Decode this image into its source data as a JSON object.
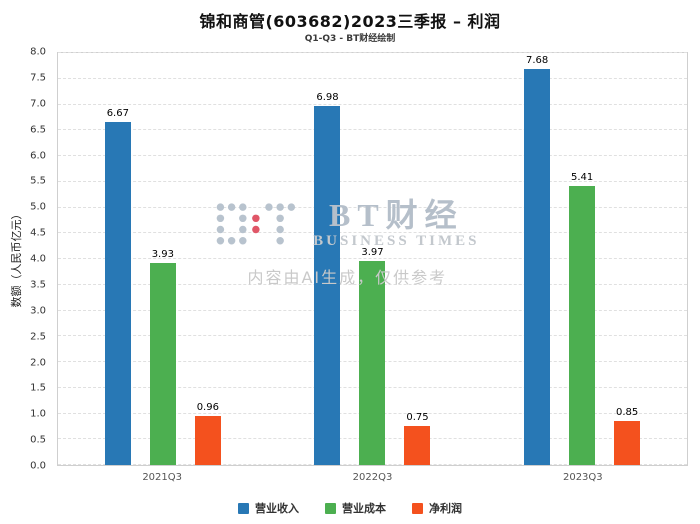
{
  "title": "锦和商管(603682)2023三季报 – 利润",
  "subtitle": "Q1-Q3 - BT财经绘制",
  "watermark": {
    "logo_text": "BT财经",
    "logo_sub": "BUSINESS TIMES",
    "disclaimer": "内容由AI生成，仅供参考"
  },
  "chart_data": {
    "type": "bar",
    "categories": [
      "2021Q3",
      "2022Q3",
      "2023Q3"
    ],
    "series": [
      {
        "name": "营业收入",
        "color": "#2878B5",
        "values": [
          6.67,
          6.98,
          7.68
        ]
      },
      {
        "name": "营业成本",
        "color": "#4CAF50",
        "values": [
          3.93,
          3.97,
          5.41
        ]
      },
      {
        "name": "净利润",
        "color": "#F4511E",
        "values": [
          0.96,
          0.75,
          0.85
        ]
      }
    ],
    "xlabel": "",
    "ylabel": "数额（人民币亿元）",
    "ylim": [
      0,
      8
    ],
    "ytick_step": 0.5,
    "grid": true,
    "legend_position": "bottom"
  }
}
